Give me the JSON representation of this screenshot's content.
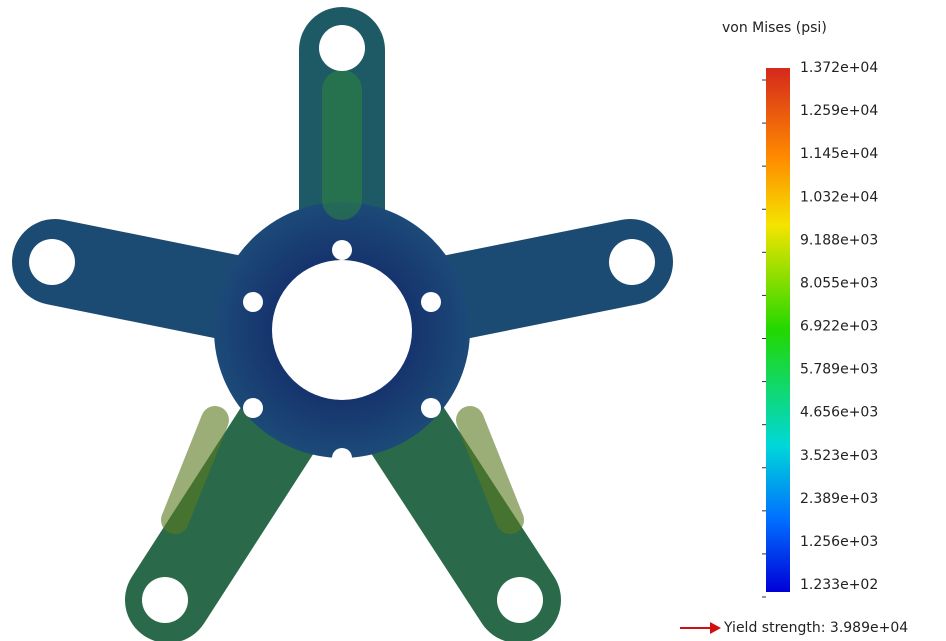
{
  "legend": {
    "title": "von Mises (psi)",
    "labels": [
      "1.372e+04",
      "1.259e+04",
      "1.145e+04",
      "1.032e+04",
      "9.188e+03",
      "8.055e+03",
      "6.922e+03",
      "5.789e+03",
      "4.656e+03",
      "3.523e+03",
      "2.389e+03",
      "1.256e+03",
      "1.233e+02"
    ],
    "yield": "Yield strength: 3.989e+04"
  }
}
